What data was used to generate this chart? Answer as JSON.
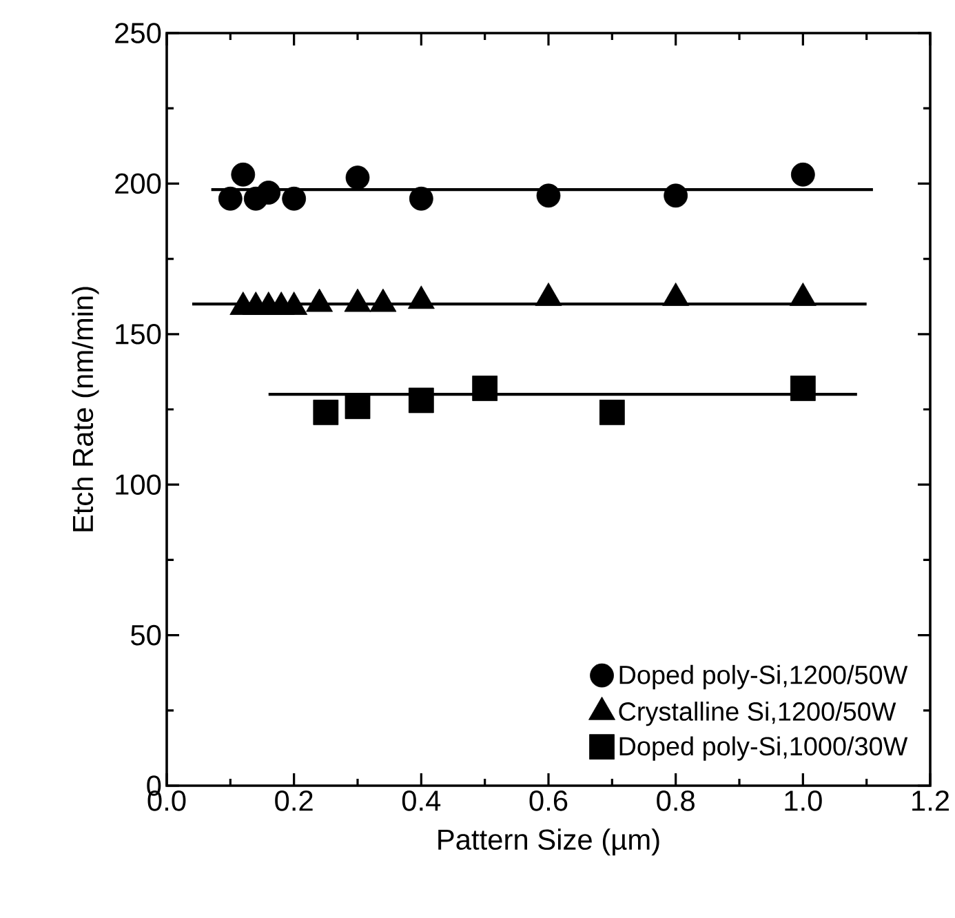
{
  "chart_data": {
    "type": "scatter",
    "xlabel": "Pattern Size (µm)",
    "ylabel": "Etch Rate (nm/min)",
    "xlim": [
      0.0,
      1.2
    ],
    "ylim": [
      0,
      250
    ],
    "xticks": [
      {
        "value": 0.0,
        "label": "0.0"
      },
      {
        "value": 0.2,
        "label": "0.2"
      },
      {
        "value": 0.4,
        "label": "0.4"
      },
      {
        "value": 0.6,
        "label": "0.6"
      },
      {
        "value": 0.8,
        "label": "0.8"
      },
      {
        "value": 1.0,
        "label": "1.0"
      },
      {
        "value": 1.2,
        "label": "1.2"
      }
    ],
    "yticks": [
      {
        "value": 0,
        "label": "0"
      },
      {
        "value": 50,
        "label": "50"
      },
      {
        "value": 100,
        "label": "100"
      },
      {
        "value": 150,
        "label": "150"
      },
      {
        "value": 200,
        "label": "200"
      },
      {
        "value": 250,
        "label": "250"
      }
    ],
    "legend": "bottom right",
    "grid": false,
    "series": [
      {
        "name": "Doped poly-Si,1200/50W",
        "color": "#000000",
        "marker": "circle",
        "x": [
          0.1,
          0.12,
          0.14,
          0.16,
          0.2,
          0.3,
          0.4,
          0.6,
          0.8,
          1.0
        ],
        "values": [
          195,
          203,
          195,
          197,
          195,
          202,
          195,
          196,
          196,
          203
        ]
      },
      {
        "name": "Crystalline Si,1200/50W",
        "color": "#000000",
        "marker": "triangle",
        "x": [
          0.12,
          0.14,
          0.16,
          0.18,
          0.2,
          0.24,
          0.3,
          0.34,
          0.4,
          0.6,
          0.8,
          1.0
        ],
        "values": [
          159,
          159,
          159,
          159,
          159,
          160,
          160,
          160,
          161,
          162,
          162,
          162
        ]
      },
      {
        "name": "Doped poly-Si,1000/30W",
        "color": "#000000",
        "marker": "square",
        "x": [
          0.25,
          0.3,
          0.4,
          0.5,
          0.7,
          1.0
        ],
        "values": [
          124,
          126,
          128,
          132,
          124,
          132
        ]
      },
      {
        "type": "line",
        "color": "#000000",
        "marker": "none",
        "line_style": "solid",
        "x": [
          0.07,
          1.11
        ],
        "values": [
          198,
          198
        ]
      },
      {
        "type": "line",
        "color": "#000000",
        "marker": "none",
        "line_style": "solid",
        "x": [
          0.04,
          1.1
        ],
        "values": [
          160,
          160
        ]
      },
      {
        "type": "line",
        "color": "#000000",
        "marker": "none",
        "line_style": "solid",
        "x": [
          0.16,
          1.085
        ],
        "values": [
          130,
          130
        ]
      }
    ]
  }
}
